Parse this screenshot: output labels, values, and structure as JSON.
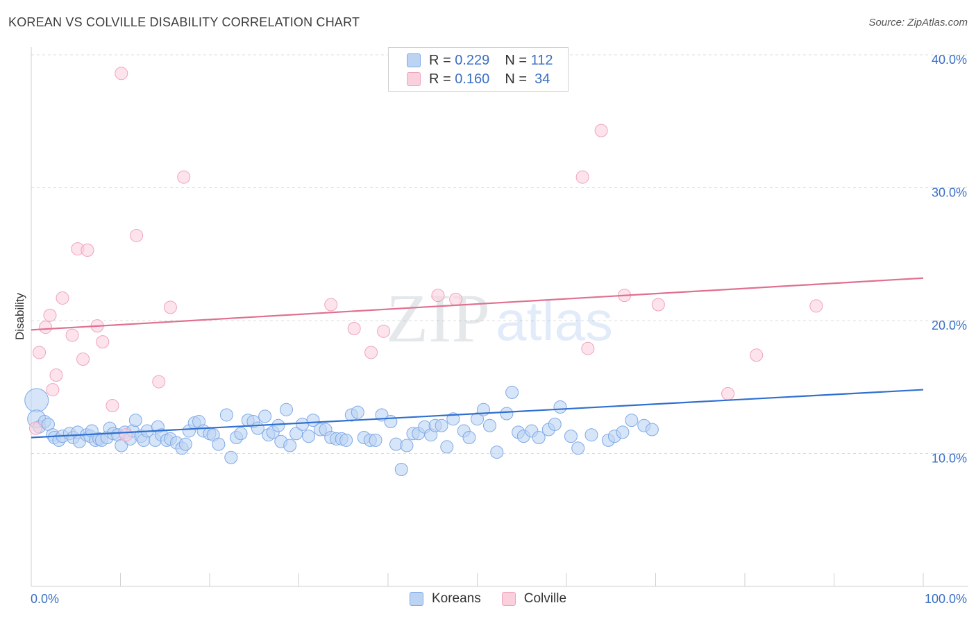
{
  "title": "KOREAN VS COLVILLE DISABILITY CORRELATION CHART",
  "source": "Source: ZipAtlas.com",
  "watermark": {
    "zip": "ZIP",
    "atlas": "atlas"
  },
  "legend_top": [
    {
      "r_label": "R = ",
      "r_value": "0.229",
      "n_label": "N = ",
      "n_value": "112",
      "color": "#7ea9e8"
    },
    {
      "r_label": "R = ",
      "r_value": "0.160",
      "n_label": "N = ",
      "n_value": " 34",
      "color": "#f0a3bd"
    }
  ],
  "legend_bottom": [
    "Koreans",
    "Colville"
  ],
  "chart_data": {
    "type": "scatter",
    "title": "KOREAN VS COLVILLE DISABILITY CORRELATION CHART",
    "xlabel": "",
    "ylabel": "Disability",
    "xlim": [
      0,
      100
    ],
    "ylim": [
      0,
      40
    ],
    "x_tick_labels": [
      "0.0%",
      "100.0%"
    ],
    "y_ticks": [
      10,
      20,
      30,
      40
    ],
    "y_tick_labels": [
      "10.0%",
      "20.0%",
      "30.0%",
      "40.0%"
    ],
    "grid": "horizontal dashed",
    "legend_position": "top-center",
    "colors": {
      "Koreans": "#7ea9e8",
      "Colville": "#f0a3bd",
      "Koreans_line": "#2f6fd0",
      "Colville_line": "#e0708f"
    },
    "series": [
      {
        "name": "Koreans",
        "trend": {
          "x0": 0,
          "y0": 11.2,
          "x1": 100,
          "y1": 14.8
        },
        "points": [
          [
            0.6,
            14
          ],
          [
            0.6,
            12.6
          ],
          [
            0.9,
            12
          ],
          [
            1.5,
            12.4
          ],
          [
            1.9,
            12.2
          ],
          [
            2.4,
            11.4
          ],
          [
            2.6,
            11.2
          ],
          [
            3.1,
            11.0
          ],
          [
            3.5,
            11.3
          ],
          [
            4.3,
            11.5
          ],
          [
            4.7,
            11.2
          ],
          [
            5.2,
            11.6
          ],
          [
            5.4,
            10.9
          ],
          [
            6.2,
            11.4
          ],
          [
            6.6,
            11.3
          ],
          [
            6.8,
            11.7
          ],
          [
            7.2,
            11.0
          ],
          [
            7.6,
            11.1
          ],
          [
            7.9,
            11.0
          ],
          [
            8.5,
            11.2
          ],
          [
            8.8,
            11.9
          ],
          [
            9.2,
            11.5
          ],
          [
            9.7,
            11.4
          ],
          [
            10.1,
            10.6
          ],
          [
            10.5,
            11.6
          ],
          [
            11.1,
            11.1
          ],
          [
            11.4,
            11.7
          ],
          [
            11.7,
            12.5
          ],
          [
            12.3,
            11.3
          ],
          [
            12.6,
            11.0
          ],
          [
            13.0,
            11.7
          ],
          [
            13.9,
            11.0
          ],
          [
            14.2,
            12.0
          ],
          [
            14.6,
            11.4
          ],
          [
            15.2,
            11.0
          ],
          [
            15.6,
            11.1
          ],
          [
            16.3,
            10.8
          ],
          [
            16.9,
            10.4
          ],
          [
            17.3,
            10.7
          ],
          [
            17.7,
            11.7
          ],
          [
            18.3,
            12.3
          ],
          [
            18.8,
            12.4
          ],
          [
            19.3,
            11.7
          ],
          [
            20.0,
            11.5
          ],
          [
            20.4,
            11.4
          ],
          [
            21.0,
            10.7
          ],
          [
            21.9,
            12.9
          ],
          [
            22.4,
            9.7
          ],
          [
            23.0,
            11.2
          ],
          [
            23.5,
            11.5
          ],
          [
            24.3,
            12.5
          ],
          [
            24.9,
            12.4
          ],
          [
            25.4,
            11.9
          ],
          [
            26.2,
            12.8
          ],
          [
            26.6,
            11.4
          ],
          [
            27.1,
            11.6
          ],
          [
            27.7,
            12.1
          ],
          [
            28.0,
            10.9
          ],
          [
            28.6,
            13.3
          ],
          [
            29.0,
            10.6
          ],
          [
            29.7,
            11.5
          ],
          [
            30.4,
            12.2
          ],
          [
            31.1,
            11.3
          ],
          [
            31.6,
            12.5
          ],
          [
            32.4,
            11.8
          ],
          [
            33.0,
            11.8
          ],
          [
            33.6,
            11.2
          ],
          [
            34.2,
            11.1
          ],
          [
            34.8,
            11.1
          ],
          [
            35.3,
            11.0
          ],
          [
            35.9,
            12.9
          ],
          [
            36.6,
            13.1
          ],
          [
            37.3,
            11.2
          ],
          [
            38.0,
            11.0
          ],
          [
            38.6,
            11.0
          ],
          [
            39.3,
            12.9
          ],
          [
            40.3,
            12.4
          ],
          [
            40.9,
            10.7
          ],
          [
            41.5,
            8.8
          ],
          [
            42.1,
            10.6
          ],
          [
            42.8,
            11.5
          ],
          [
            43.4,
            11.5
          ],
          [
            44.1,
            12.0
          ],
          [
            44.8,
            11.4
          ],
          [
            45.3,
            12.1
          ],
          [
            46.0,
            12.1
          ],
          [
            46.6,
            10.5
          ],
          [
            47.3,
            12.6
          ],
          [
            48.5,
            11.7
          ],
          [
            49.1,
            11.2
          ],
          [
            50.0,
            12.6
          ],
          [
            50.7,
            13.3
          ],
          [
            51.4,
            12.1
          ],
          [
            52.2,
            10.1
          ],
          [
            53.3,
            13.0
          ],
          [
            53.9,
            14.6
          ],
          [
            54.6,
            11.6
          ],
          [
            55.2,
            11.3
          ],
          [
            56.1,
            11.7
          ],
          [
            56.9,
            11.2
          ],
          [
            58.0,
            11.8
          ],
          [
            58.7,
            12.2
          ],
          [
            59.3,
            13.5
          ],
          [
            60.5,
            11.3
          ],
          [
            61.3,
            10.4
          ],
          [
            62.8,
            11.4
          ],
          [
            64.7,
            11.0
          ],
          [
            65.4,
            11.3
          ],
          [
            66.3,
            11.6
          ],
          [
            67.3,
            12.5
          ],
          [
            68.7,
            12.1
          ],
          [
            69.6,
            11.8
          ]
        ]
      },
      {
        "name": "Colville",
        "trend": {
          "x0": 0,
          "y0": 19.3,
          "x1": 100,
          "y1": 23.2
        },
        "points": [
          [
            0.5,
            11.9
          ],
          [
            0.9,
            17.6
          ],
          [
            1.6,
            19.5
          ],
          [
            2.1,
            20.4
          ],
          [
            2.4,
            14.8
          ],
          [
            2.8,
            15.9
          ],
          [
            3.5,
            21.7
          ],
          [
            4.6,
            18.9
          ],
          [
            5.2,
            25.4
          ],
          [
            5.8,
            17.1
          ],
          [
            6.3,
            25.3
          ],
          [
            7.4,
            19.6
          ],
          [
            8.0,
            18.4
          ],
          [
            9.1,
            13.6
          ],
          [
            10.1,
            38.6
          ],
          [
            10.6,
            11.4
          ],
          [
            11.8,
            26.4
          ],
          [
            14.3,
            15.4
          ],
          [
            15.6,
            21.0
          ],
          [
            17.1,
            30.8
          ],
          [
            33.6,
            21.2
          ],
          [
            36.2,
            19.4
          ],
          [
            38.1,
            17.6
          ],
          [
            39.5,
            19.2
          ],
          [
            45.6,
            21.9
          ],
          [
            47.6,
            21.6
          ],
          [
            61.8,
            30.8
          ],
          [
            62.4,
            17.9
          ],
          [
            63.9,
            34.3
          ],
          [
            66.5,
            21.9
          ],
          [
            70.3,
            21.2
          ],
          [
            78.1,
            14.5
          ],
          [
            81.3,
            17.4
          ],
          [
            88.0,
            21.1
          ]
        ]
      }
    ]
  }
}
